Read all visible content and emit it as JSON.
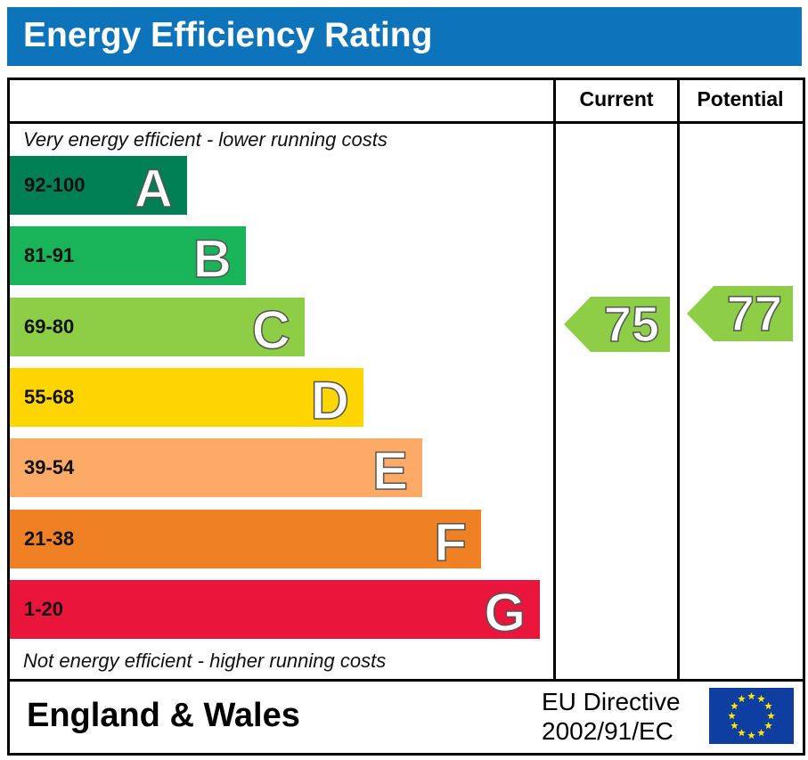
{
  "title": "Energy Efficiency Rating",
  "columns": {
    "current": "Current",
    "potential": "Potential"
  },
  "top_note": "Very energy efficient - lower running costs",
  "bottom_note": "Not energy efficient - higher running costs",
  "footer": {
    "region": "England & Wales",
    "directive_line1": "EU Directive",
    "directive_line2": "2002/91/EC",
    "flag_icon": "eu-flag-icon"
  },
  "colors": {
    "title_bar": "#0d74bb",
    "rating_arrow": "#8dce46"
  },
  "chart_data": {
    "type": "bar",
    "title": "Energy Efficiency Rating",
    "bands": [
      {
        "letter": "A",
        "range": "92-100",
        "color": "#008054"
      },
      {
        "letter": "B",
        "range": "81-91",
        "color": "#19b459"
      },
      {
        "letter": "C",
        "range": "69-80",
        "color": "#8dce46"
      },
      {
        "letter": "D",
        "range": "55-68",
        "color": "#ffd500"
      },
      {
        "letter": "E",
        "range": "39-54",
        "color": "#fcaa65"
      },
      {
        "letter": "F",
        "range": "21-38",
        "color": "#ef8023"
      },
      {
        "letter": "G",
        "range": "1-20",
        "color": "#e9153b"
      }
    ],
    "current": {
      "value": "75",
      "band": "C"
    },
    "potential": {
      "value": "77",
      "band": "C"
    }
  }
}
